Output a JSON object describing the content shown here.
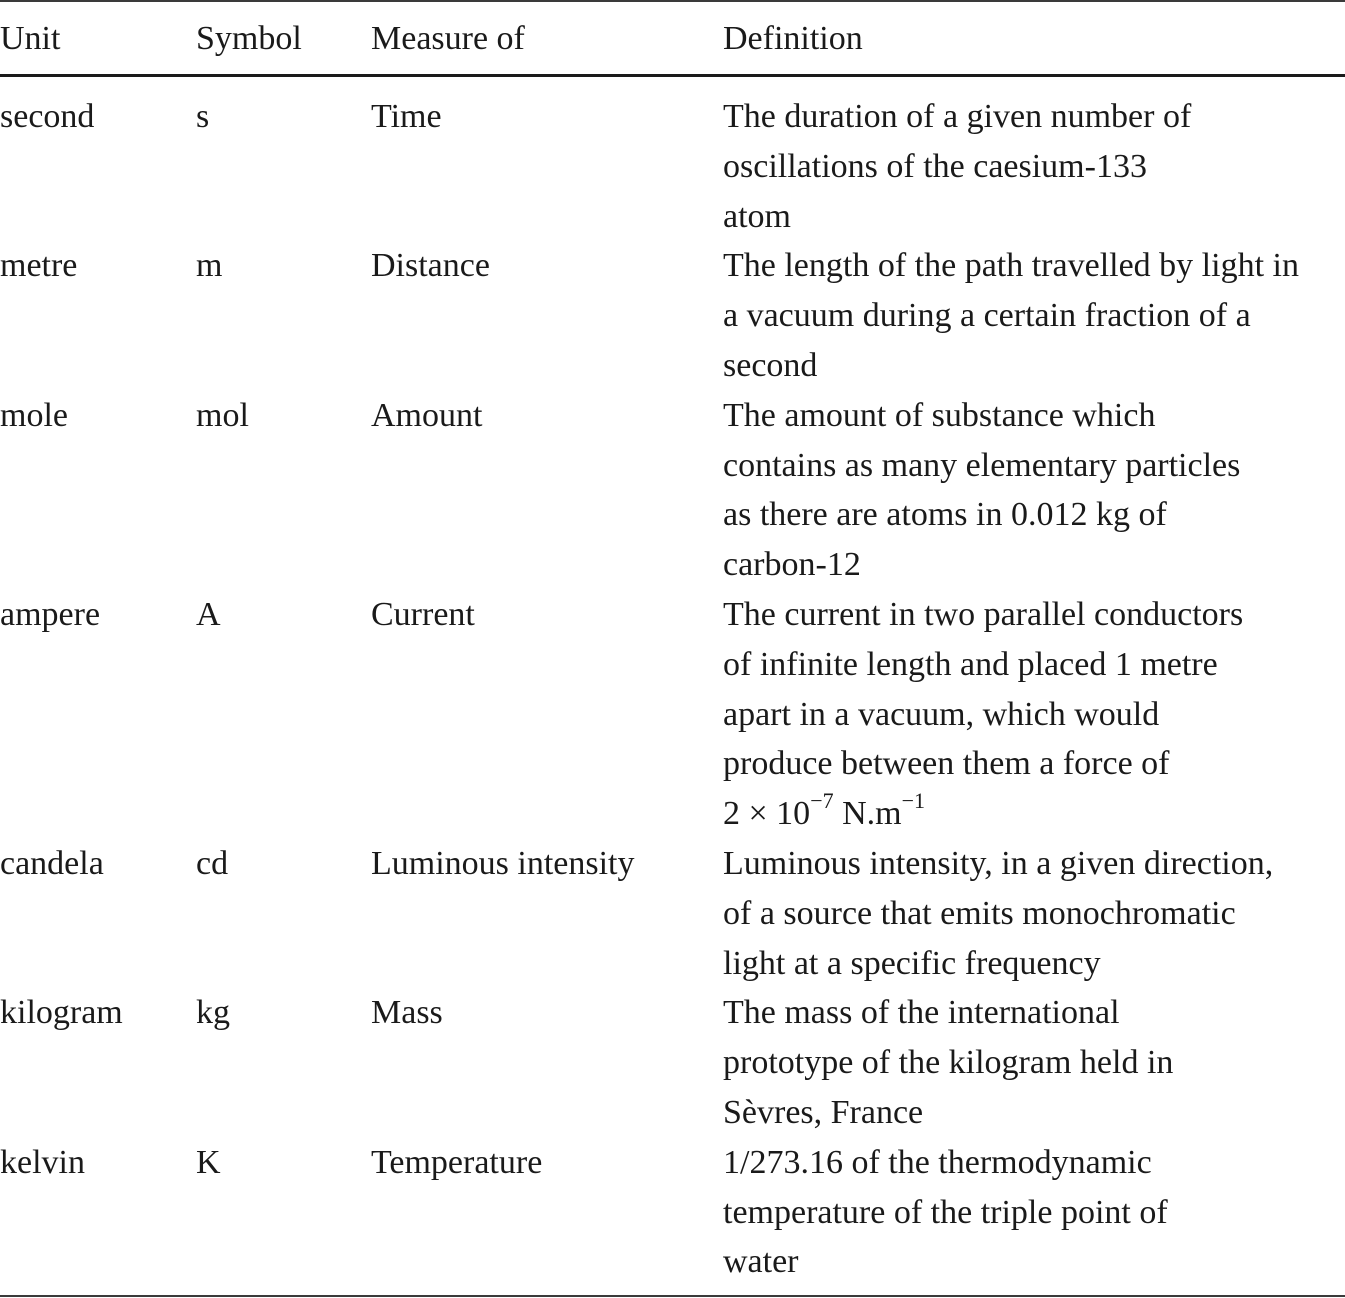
{
  "table": {
    "headers": {
      "unit": "Unit",
      "symbol": "Symbol",
      "measure": "Measure of",
      "definition": "Definition"
    },
    "rows": [
      {
        "unit": "second",
        "symbol": "s",
        "measure": "Time",
        "definition": [
          "The duration of a given number of",
          "oscillations of the caesium-133",
          "atom"
        ]
      },
      {
        "unit": "metre",
        "symbol": "m",
        "measure": "Distance",
        "definition": [
          "The length of the path travelled by light in",
          "a vacuum during a certain fraction of a",
          "second"
        ]
      },
      {
        "unit": "mole",
        "symbol": "mol",
        "measure": "Amount",
        "definition": [
          "The amount of substance which",
          "contains as many elementary particles",
          "as there are atoms in 0.012 kg of",
          "carbon-12"
        ]
      },
      {
        "unit": "ampere",
        "symbol": "A",
        "measure": "Current",
        "definition": [
          "The current in two parallel conductors",
          "of infinite length and placed 1 metre",
          "apart in a vacuum, which would",
          "produce between them a force of"
        ],
        "formula": {
          "base": "2 × 10",
          "exp1": "−7",
          "unit": " N.m",
          "exp2": "−1"
        }
      },
      {
        "unit": "candela",
        "symbol": "cd",
        "measure": "Luminous intensity",
        "definition": [
          "Luminous intensity, in a given direction,",
          "of a source that emits monochromatic",
          "light at a specific frequency"
        ]
      },
      {
        "unit": "kilogram",
        "symbol": "kg",
        "measure": "Mass",
        "definition": [
          "The mass of the international",
          "prototype of the kilogram held in",
          "Sèvres, France"
        ]
      },
      {
        "unit": "kelvin",
        "symbol": "K",
        "measure": "Temperature",
        "definition": [
          "1/273.16 of the thermodynamic",
          "temperature of the triple point of",
          "water"
        ]
      }
    ]
  }
}
